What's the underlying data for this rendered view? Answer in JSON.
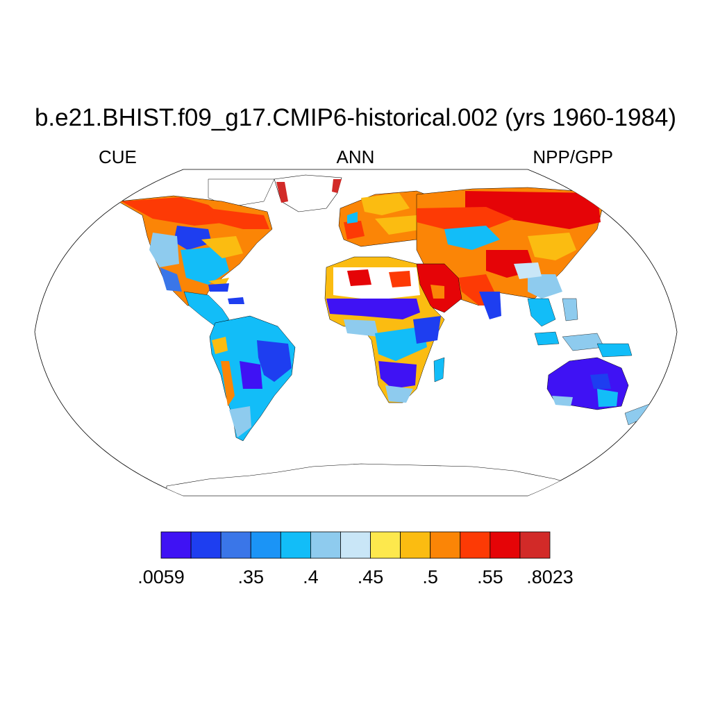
{
  "figure": {
    "title": "b.e21.BHIST.f09_g17.CMIP6-historical.002 (yrs 1960-1984)",
    "left_label": "CUE",
    "center_label": "ANN",
    "right_label": "NPP/GPP"
  },
  "colorbar": {
    "colors": [
      "#3f12f4",
      "#1e3ef0",
      "#3a76e8",
      "#1b94f6",
      "#12bdf8",
      "#8ecbee",
      "#c9e6f7",
      "#fde84d",
      "#fbbc11",
      "#fb8506",
      "#fd3a05",
      "#e50407",
      "#d22a28"
    ],
    "labels": [
      ".0059",
      ".35",
      ".4",
      ".45",
      ".5",
      ".55",
      ".8023"
    ]
  },
  "map": {
    "projection": "Robinson",
    "variable": "NPP/GPP",
    "region_colors": {
      "ocean": "#ffffff",
      "outline": "#000000",
      "ice": "#ffffff"
    }
  }
}
